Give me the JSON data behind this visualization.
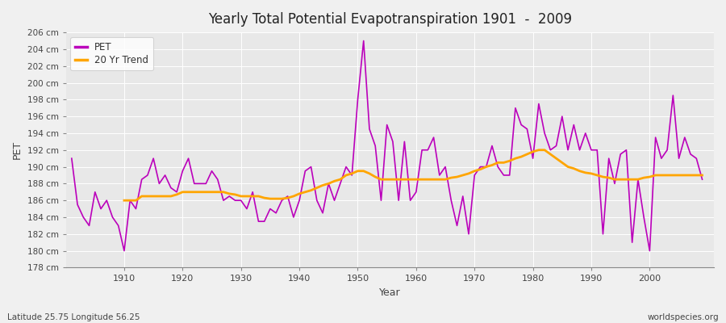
{
  "title": "Yearly Total Potential Evapotranspiration 1901  -  2009",
  "xlabel": "Year",
  "ylabel": "PET",
  "subtitle_left": "Latitude 25.75 Longitude 56.25",
  "subtitle_right": "worldspecies.org",
  "ylim": [
    178,
    206
  ],
  "ytick_step": 2,
  "pet_color": "#bb00bb",
  "trend_color": "#ffa500",
  "bg_color": "#f0f0f0",
  "plot_bg_color": "#e8e8e8",
  "grid_color": "#ffffff",
  "legend_labels": [
    "PET",
    "20 Yr Trend"
  ],
  "years": [
    1901,
    1902,
    1903,
    1904,
    1905,
    1906,
    1907,
    1908,
    1909,
    1910,
    1911,
    1912,
    1913,
    1914,
    1915,
    1916,
    1917,
    1918,
    1919,
    1920,
    1921,
    1922,
    1923,
    1924,
    1925,
    1926,
    1927,
    1928,
    1929,
    1930,
    1931,
    1932,
    1933,
    1934,
    1935,
    1936,
    1937,
    1938,
    1939,
    1940,
    1941,
    1942,
    1943,
    1944,
    1945,
    1946,
    1947,
    1948,
    1949,
    1950,
    1951,
    1952,
    1953,
    1954,
    1955,
    1956,
    1957,
    1958,
    1959,
    1960,
    1961,
    1962,
    1963,
    1964,
    1965,
    1966,
    1967,
    1968,
    1969,
    1970,
    1971,
    1972,
    1973,
    1974,
    1975,
    1976,
    1977,
    1978,
    1979,
    1980,
    1981,
    1982,
    1983,
    1984,
    1985,
    1986,
    1987,
    1988,
    1989,
    1990,
    1991,
    1992,
    1993,
    1994,
    1995,
    1996,
    1997,
    1998,
    1999,
    2000,
    2001,
    2002,
    2003,
    2004,
    2005,
    2006,
    2007,
    2008,
    2009
  ],
  "pet_values": [
    191,
    185.5,
    184,
    183,
    187,
    185,
    186,
    184,
    183,
    180,
    186,
    185,
    188.5,
    189,
    191,
    188,
    189,
    187.5,
    187,
    189.5,
    191,
    188,
    188,
    188,
    189.5,
    188.5,
    186,
    186.5,
    186,
    186,
    185,
    187,
    183.5,
    183.5,
    185,
    184.5,
    186,
    186.5,
    184,
    186,
    189.5,
    190,
    186,
    184.5,
    188,
    186,
    188,
    190,
    189,
    198,
    205,
    194.5,
    192.5,
    186,
    195,
    193,
    186,
    193,
    186,
    187,
    192,
    192,
    193.5,
    189,
    190,
    186,
    183,
    186.5,
    182,
    189,
    190,
    190,
    192.5,
    190,
    189,
    189,
    197,
    195,
    194.5,
    191,
    197.5,
    194,
    192,
    192.5,
    196,
    192,
    195,
    192,
    194,
    192,
    192,
    182,
    191,
    188,
    191.5,
    192,
    181,
    188.5,
    184,
    180,
    193.5,
    191,
    192,
    198.5,
    191,
    193.5,
    191.5,
    191,
    188.5
  ],
  "trend_values": [
    null,
    null,
    null,
    null,
    null,
    null,
    null,
    null,
    null,
    186,
    186,
    186,
    186.5,
    186.5,
    186.5,
    186.5,
    186.5,
    186.5,
    186.7,
    187,
    187,
    187,
    187,
    187,
    187,
    187,
    187,
    186.8,
    186.7,
    186.5,
    186.5,
    186.5,
    186.5,
    186.3,
    186.2,
    186.2,
    186.2,
    186.3,
    186.5,
    186.8,
    187,
    187.2,
    187.5,
    187.8,
    188,
    188.3,
    188.5,
    189,
    189.2,
    189.5,
    189.5,
    189.2,
    188.8,
    188.5,
    188.5,
    188.5,
    188.5,
    188.5,
    188.5,
    188.5,
    188.5,
    188.5,
    188.5,
    188.5,
    188.5,
    188.7,
    188.8,
    189,
    189.2,
    189.5,
    189.7,
    190,
    190.2,
    190.5,
    190.5,
    190.7,
    191,
    191.2,
    191.5,
    191.8,
    192,
    192,
    191.5,
    191,
    190.5,
    190,
    189.8,
    189.5,
    189.3,
    189.2,
    189,
    188.8,
    188.7,
    188.5,
    188.5,
    188.5,
    188.5,
    188.5,
    188.7,
    188.8,
    189,
    189,
    189,
    189,
    189,
    189,
    189,
    189,
    189
  ]
}
